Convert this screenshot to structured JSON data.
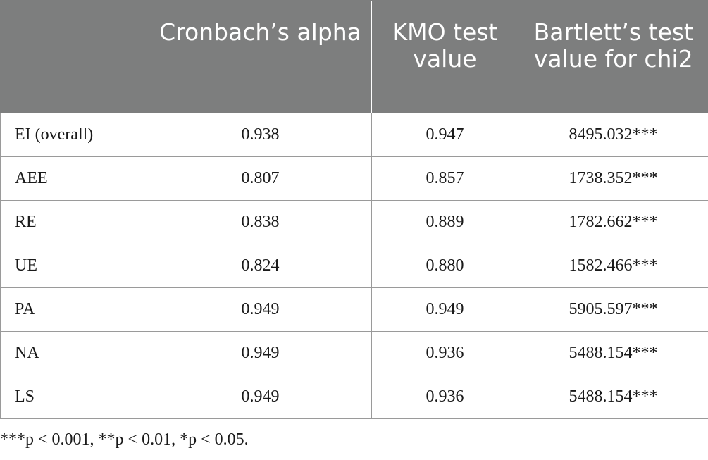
{
  "table": {
    "headers": [
      "",
      "Cronbach’s alpha",
      "KMO test value",
      "Bartlett’s test value for chi2"
    ],
    "rows": [
      [
        "EI (overall)",
        "0.938",
        "0.947",
        "8495.032***"
      ],
      [
        "AEE",
        "0.807",
        "0.857",
        "1738.352***"
      ],
      [
        "RE",
        "0.838",
        "0.889",
        "1782.662***"
      ],
      [
        "UE",
        "0.824",
        "0.880",
        "1582.466***"
      ],
      [
        "PA",
        "0.949",
        "0.949",
        "5905.597***"
      ],
      [
        "NA",
        "0.949",
        "0.936",
        "5488.154***"
      ],
      [
        "LS",
        "0.949",
        "0.936",
        "5488.154***"
      ]
    ]
  },
  "footnote": "***p < 0.001, **p < 0.01, *p < 0.05.",
  "colors": {
    "header_background": "#7d7e7e",
    "header_text": "#ffffff",
    "border": "#9a9a9a"
  }
}
